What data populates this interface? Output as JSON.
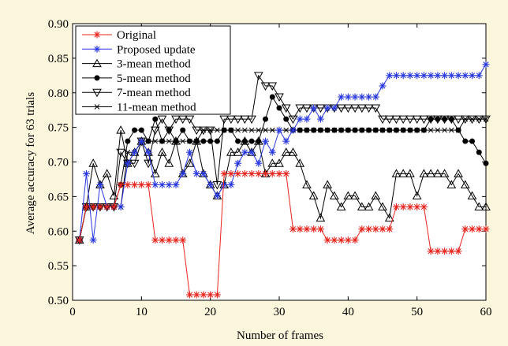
{
  "chart_data": {
    "type": "line",
    "title": "",
    "xlabel": "Number of frames",
    "ylabel": "Average accuracy for 63 trials",
    "xlim": [
      0,
      60
    ],
    "ylim": [
      0.5,
      0.9
    ],
    "xticks": [
      0,
      10,
      20,
      30,
      40,
      50,
      60
    ],
    "yticks": [
      0.5,
      0.55,
      0.6,
      0.65,
      0.7,
      0.75,
      0.8,
      0.85,
      0.9
    ],
    "legend_position": "top-left",
    "x": [
      1,
      2,
      3,
      4,
      5,
      6,
      7,
      8,
      9,
      10,
      11,
      12,
      13,
      14,
      15,
      16,
      17,
      18,
      19,
      20,
      21,
      22,
      23,
      24,
      25,
      26,
      27,
      28,
      29,
      30,
      31,
      32,
      33,
      34,
      35,
      36,
      37,
      38,
      39,
      40,
      41,
      42,
      43,
      44,
      45,
      46,
      47,
      48,
      49,
      50,
      51,
      52,
      53,
      54,
      55,
      56,
      57,
      58,
      59,
      60
    ],
    "series": [
      {
        "name": "Original",
        "color": "#e8261e",
        "marker": "star",
        "values": [
          0.587,
          0.635,
          0.635,
          0.635,
          0.635,
          0.635,
          0.667,
          0.667,
          0.667,
          0.667,
          0.667,
          0.587,
          0.587,
          0.587,
          0.587,
          0.587,
          0.508,
          0.508,
          0.508,
          0.508,
          0.508,
          0.683,
          0.683,
          0.683,
          0.683,
          0.683,
          0.683,
          0.683,
          0.683,
          0.683,
          0.683,
          0.603,
          0.603,
          0.603,
          0.603,
          0.603,
          0.587,
          0.587,
          0.587,
          0.587,
          0.587,
          0.603,
          0.603,
          0.603,
          0.603,
          0.603,
          0.635,
          0.635,
          0.635,
          0.635,
          0.635,
          0.571,
          0.571,
          0.571,
          0.571,
          0.571,
          0.603,
          0.603,
          0.603,
          0.603
        ]
      },
      {
        "name": "Proposed update",
        "color": "#2838e0",
        "marker": "star",
        "values": [
          0.587,
          0.683,
          0.587,
          0.667,
          0.635,
          0.635,
          0.635,
          0.698,
          0.714,
          0.73,
          0.714,
          0.667,
          0.667,
          0.667,
          0.667,
          0.683,
          0.714,
          0.683,
          0.683,
          0.667,
          0.651,
          0.667,
          0.667,
          0.698,
          0.714,
          0.714,
          0.698,
          0.73,
          0.714,
          0.746,
          0.73,
          0.746,
          0.762,
          0.762,
          0.778,
          0.762,
          0.778,
          0.778,
          0.794,
          0.794,
          0.794,
          0.794,
          0.794,
          0.794,
          0.81,
          0.825,
          0.825,
          0.825,
          0.825,
          0.825,
          0.825,
          0.825,
          0.825,
          0.825,
          0.825,
          0.825,
          0.825,
          0.825,
          0.825,
          0.841
        ]
      },
      {
        "name": "3-mean method",
        "color": "#000000",
        "marker": "triangle",
        "values": [
          0.587,
          0.635,
          0.698,
          0.667,
          0.683,
          0.651,
          0.746,
          0.698,
          0.714,
          0.73,
          0.714,
          0.683,
          0.714,
          0.698,
          0.73,
          0.683,
          0.698,
          0.73,
          0.683,
          0.667,
          0.651,
          0.667,
          0.714,
          0.714,
          0.73,
          0.714,
          0.73,
          0.683,
          0.698,
          0.698,
          0.714,
          0.714,
          0.698,
          0.667,
          0.651,
          0.619,
          0.667,
          0.651,
          0.635,
          0.651,
          0.651,
          0.635,
          0.635,
          0.651,
          0.635,
          0.619,
          0.683,
          0.683,
          0.683,
          0.651,
          0.683,
          0.683,
          0.683,
          0.683,
          0.667,
          0.683,
          0.667,
          0.651,
          0.635,
          0.635
        ]
      },
      {
        "name": "5-mean method",
        "color": "#000000",
        "marker": "circle",
        "values": [
          0.587,
          0.635,
          0.635,
          0.635,
          0.635,
          0.635,
          0.667,
          0.73,
          0.746,
          0.746,
          0.73,
          0.762,
          0.73,
          0.746,
          0.73,
          0.746,
          0.73,
          0.73,
          0.73,
          0.73,
          0.73,
          0.746,
          0.746,
          0.73,
          0.73,
          0.73,
          0.73,
          0.762,
          0.794,
          0.778,
          0.762,
          0.746,
          0.746,
          0.746,
          0.746,
          0.746,
          0.746,
          0.746,
          0.746,
          0.746,
          0.746,
          0.746,
          0.746,
          0.746,
          0.746,
          0.746,
          0.746,
          0.746,
          0.746,
          0.746,
          0.746,
          0.762,
          0.762,
          0.762,
          0.762,
          0.746,
          0.73,
          0.73,
          0.714,
          0.698
        ]
      },
      {
        "name": "7-mean method",
        "color": "#000000",
        "marker": "triangle-down",
        "values": [
          0.587,
          0.635,
          0.635,
          0.635,
          0.635,
          0.635,
          0.714,
          0.698,
          0.698,
          0.73,
          0.698,
          0.746,
          0.762,
          0.746,
          0.762,
          0.762,
          0.762,
          0.746,
          0.746,
          0.746,
          0.667,
          0.762,
          0.762,
          0.762,
          0.762,
          0.762,
          0.825,
          0.81,
          0.81,
          0.794,
          0.778,
          0.762,
          0.778,
          0.778,
          0.778,
          0.778,
          0.778,
          0.778,
          0.778,
          0.778,
          0.778,
          0.778,
          0.778,
          0.778,
          0.762,
          0.762,
          0.762,
          0.762,
          0.762,
          0.762,
          0.762,
          0.762,
          0.762,
          0.762,
          0.762,
          0.762,
          0.762,
          0.762,
          0.762,
          0.762
        ]
      },
      {
        "name": "11-mean method",
        "color": "#000000",
        "marker": "x",
        "values": [
          0.587,
          0.635,
          0.635,
          0.635,
          0.635,
          0.635,
          0.635,
          0.714,
          0.714,
          0.73,
          0.73,
          0.73,
          0.73,
          0.73,
          0.73,
          0.73,
          0.73,
          0.73,
          0.746,
          0.746,
          0.746,
          0.746,
          0.746,
          0.746,
          0.746,
          0.746,
          0.746,
          0.746,
          0.746,
          0.746,
          0.746,
          0.746,
          0.746,
          0.746,
          0.746,
          0.746,
          0.746,
          0.746,
          0.746,
          0.746,
          0.746,
          0.746,
          0.746,
          0.746,
          0.746,
          0.746,
          0.746,
          0.746,
          0.746,
          0.746,
          0.746,
          0.746,
          0.746,
          0.746,
          0.746,
          0.746,
          0.762,
          0.762,
          0.762,
          0.762
        ]
      }
    ]
  }
}
